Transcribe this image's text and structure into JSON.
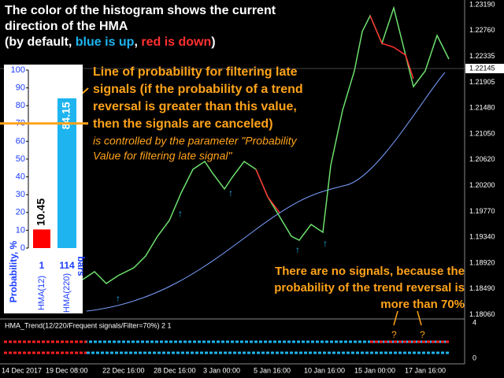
{
  "header": {
    "line1": "The color of the histogram shows the current",
    "line2": "direction of the HMA",
    "line3_start": "(by default, ",
    "up": "blue is up",
    "sep": ", ",
    "down": "red is down",
    "line3_end": ")"
  },
  "note_filter": {
    "lines": [
      "Line of probability for filtering late",
      "signals (if the probability of a trend",
      "reversal is greater than this value,",
      "then the signals are canceled)"
    ],
    "italic": [
      "is controlled by the parameter \"Probability",
      "Value for filtering late signal\""
    ]
  },
  "note_nosignal": {
    "lines": [
      "There are no signals, because the",
      "probability of the trend reversal is",
      "more than 70%"
    ]
  },
  "price_axis": {
    "labels": [
      "1.23190",
      "1.22760",
      "1.22335",
      "1.21905",
      "1.21480",
      "1.21050",
      "1.20620",
      "1.20200",
      "1.19770",
      "1.19340",
      "1.18920",
      "1.18490",
      "1.18060"
    ],
    "current": "1.22145"
  },
  "time_axis": {
    "labels": [
      "14 Dec 2017",
      "19 Dec 08:00",
      "22 Dec 16:00",
      "28 Dec 16:00",
      "3 Jan 00:00",
      "5 Jan 16:00",
      "10 Jan 16:00",
      "15 Jan 00:00",
      "17 Jan 16:00"
    ]
  },
  "indicator": {
    "label": "HMA_Trend(12/220/Frequent signals/Filter=70%) 2 1",
    "axis": [
      "4",
      "0"
    ],
    "markers": [
      "?",
      "?"
    ]
  },
  "probability": {
    "axis_label": "Probability, %",
    "ylim": [
      0,
      100
    ],
    "yticks": [
      0,
      10,
      20,
      30,
      40,
      50,
      60,
      70,
      80,
      90,
      100
    ],
    "threshold": 70,
    "bars_label": "bars",
    "bars": [
      {
        "value": 10.45,
        "count": "1",
        "name": "HMA(12)",
        "color": "#ff0000"
      },
      {
        "value": 84.15,
        "count": "114",
        "name": "HMA(220)",
        "color": "#1eb4f0"
      }
    ]
  }
}
